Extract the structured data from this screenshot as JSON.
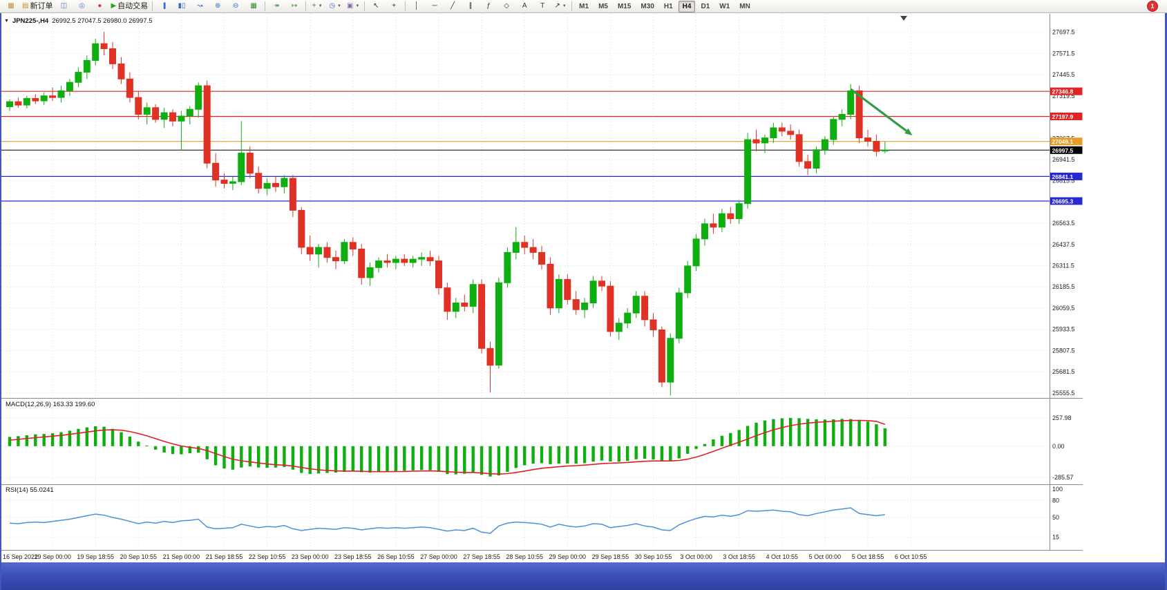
{
  "toolbar": {
    "items": [
      {
        "name": "new-chart",
        "glyph": "▦",
        "color": "#b8962e"
      },
      {
        "name": "new-order",
        "glyph": "▤",
        "color": "#b8962e",
        "label": "新订单"
      },
      {
        "name": "profiles",
        "glyph": "◫",
        "color": "#4a72c8"
      },
      {
        "name": "sounds",
        "glyph": "◎",
        "color": "#4a72c8"
      },
      {
        "name": "expert-advisors",
        "glyph": "●",
        "color": "#d43c3c"
      },
      {
        "name": "autotrading",
        "glyph": "▶",
        "color": "#27a227",
        "label": "自动交易"
      },
      {
        "sep": true
      },
      {
        "name": "bar-chart-mode",
        "glyph": "|||",
        "tight": true,
        "color": "#3a6bd0"
      },
      {
        "name": "candlestick-mode",
        "glyph": "▮▯",
        "color": "#3a6bd0"
      },
      {
        "name": "line-chart-mode",
        "glyph": "↝",
        "color": "#3a6bd0"
      },
      {
        "name": "zoom-in",
        "glyph": "⊕",
        "color": "#3a6bd0"
      },
      {
        "name": "zoom-out",
        "glyph": "⊖",
        "color": "#3a6bd0"
      },
      {
        "name": "tile-windows",
        "glyph": "▦",
        "color": "#2e8b2e"
      },
      {
        "sep": true
      },
      {
        "name": "auto-scroll",
        "glyph": "↠",
        "color": "#2e8b2e"
      },
      {
        "name": "chart-shift",
        "glyph": "↦",
        "color": "#2e8b2e"
      },
      {
        "sep": true
      },
      {
        "name": "indicators",
        "glyph": "+",
        "color": "#2e8b2e",
        "caret": true
      },
      {
        "name": "periods",
        "glyph": "◷",
        "color": "#3a6bd0",
        "caret": true
      },
      {
        "name": "templates",
        "glyph": "▣",
        "color": "#8a6db0",
        "caret": true
      },
      {
        "sep": true
      },
      {
        "name": "cursor",
        "glyph": "↖",
        "color": "#333333"
      },
      {
        "name": "crosshair",
        "glyph": "+",
        "color": "#333333"
      },
      {
        "sep": true
      },
      {
        "name": "vertical-line",
        "glyph": "│",
        "color": "#333333"
      },
      {
        "name": "horizontal-line",
        "glyph": "─",
        "color": "#333333"
      },
      {
        "name": "trendline",
        "glyph": "╱",
        "color": "#333333"
      },
      {
        "name": "channel",
        "glyph": "∥",
        "color": "#333333"
      },
      {
        "name": "fibonacci",
        "glyph": "ƒ",
        "color": "#333333"
      },
      {
        "name": "shapes",
        "glyph": "◇",
        "color": "#333333"
      },
      {
        "name": "text",
        "glyph": "A",
        "color": "#333333"
      },
      {
        "name": "text-label",
        "glyph": "T",
        "color": "#333333"
      },
      {
        "name": "arrows",
        "glyph": "↗",
        "color": "#333333",
        "caret": true
      },
      {
        "sep": true
      }
    ],
    "timeframes": [
      "M1",
      "M5",
      "M15",
      "M30",
      "H1",
      "H4",
      "D1",
      "W1",
      "MN"
    ],
    "active_timeframe": "H4",
    "notification_count": "1"
  },
  "chart_data": {
    "type": "candlestick",
    "symbol": "JPN225-",
    "timeframe": "H4",
    "title": "JPN225-,H4",
    "ohlc_display": "26992.5 27047.5 26980.0 26997.5",
    "last_candle": {
      "open": 26992.5,
      "high": 27047.5,
      "low": 26980.0,
      "close": 26997.5
    },
    "price_axis_labels": [
      "27697.5",
      "27571.5",
      "27445.5",
      "27319.5",
      "27193.5",
      "27067.5",
      "26941.5",
      "26815.5",
      "26689.5",
      "26563.5",
      "26437.5",
      "26311.5",
      "26185.5",
      "26059.5",
      "25933.5",
      "25807.5",
      "25681.5",
      "25555.5"
    ],
    "time_axis_labels": [
      "16 Sep 2022",
      "19 Sep 00:00",
      "19 Sep 18:55",
      "20 Sep 10:55",
      "21 Sep 00:00",
      "21 Sep 18:55",
      "22 Sep 10:55",
      "23 Sep 00:00",
      "23 Sep 18:55",
      "26 Sep 10:55",
      "27 Sep 00:00",
      "27 Sep 18:55",
      "28 Sep 10:55",
      "29 Sep 00:00",
      "29 Sep 18:55",
      "30 Sep 10:55",
      "3 Oct 00:00",
      "3 Oct 18:55",
      "4 Oct 10:55",
      "5 Oct 00:00",
      "5 Oct 18:55",
      "6 Oct 10:55"
    ],
    "bars_per_time_label": 5,
    "candles": [
      [
        27255,
        27300,
        27230,
        27285
      ],
      [
        27285,
        27310,
        27250,
        27265
      ],
      [
        27265,
        27320,
        27245,
        27305
      ],
      [
        27305,
        27330,
        27270,
        27290
      ],
      [
        27290,
        27340,
        27265,
        27320
      ],
      [
        27320,
        27370,
        27290,
        27310
      ],
      [
        27310,
        27380,
        27280,
        27350
      ],
      [
        27350,
        27420,
        27320,
        27400
      ],
      [
        27400,
        27490,
        27370,
        27460
      ],
      [
        27460,
        27560,
        27420,
        27530
      ],
      [
        27530,
        27660,
        27500,
        27630
      ],
      [
        27630,
        27700,
        27560,
        27600
      ],
      [
        27600,
        27640,
        27480,
        27510
      ],
      [
        27510,
        27550,
        27390,
        27420
      ],
      [
        27420,
        27460,
        27280,
        27310
      ],
      [
        27310,
        27350,
        27180,
        27210
      ],
      [
        27210,
        27280,
        27150,
        27250
      ],
      [
        27250,
        27270,
        27160,
        27180
      ],
      [
        27180,
        27250,
        27130,
        27220
      ],
      [
        27220,
        27240,
        27140,
        27170
      ],
      [
        27170,
        27230,
        26995,
        27200
      ],
      [
        27200,
        27260,
        27150,
        27240
      ],
      [
        27240,
        27400,
        27190,
        27380
      ],
      [
        27380,
        27410,
        26890,
        26920
      ],
      [
        26920,
        26980,
        26780,
        26820
      ],
      [
        26820,
        26860,
        26770,
        26800
      ],
      [
        26800,
        26840,
        26760,
        26810
      ],
      [
        26810,
        27170,
        26790,
        26980
      ],
      [
        26980,
        27020,
        26830,
        26860
      ],
      [
        26860,
        26900,
        26740,
        26770
      ],
      [
        26770,
        26830,
        26730,
        26800
      ],
      [
        26800,
        26840,
        26750,
        26780
      ],
      [
        26780,
        26850,
        26740,
        26830
      ],
      [
        26830,
        26850,
        26600,
        26640
      ],
      [
        26640,
        26660,
        26380,
        26420
      ],
      [
        26420,
        26490,
        26340,
        26380
      ],
      [
        26380,
        26440,
        26300,
        26420
      ],
      [
        26420,
        26450,
        26330,
        26360
      ],
      [
        26360,
        26400,
        26290,
        26340
      ],
      [
        26340,
        26470,
        26320,
        26450
      ],
      [
        26450,
        26480,
        26370,
        26410
      ],
      [
        26410,
        26440,
        26200,
        26240
      ],
      [
        26240,
        26330,
        26190,
        26300
      ],
      [
        26300,
        26360,
        26270,
        26340
      ],
      [
        26340,
        26380,
        26300,
        26330
      ],
      [
        26330,
        26370,
        26290,
        26350
      ],
      [
        26350,
        26380,
        26310,
        26330
      ],
      [
        26330,
        26370,
        26300,
        26350
      ],
      [
        26350,
        26390,
        26310,
        26360
      ],
      [
        26360,
        26400,
        26310,
        26340
      ],
      [
        26340,
        26370,
        26140,
        26180
      ],
      [
        26180,
        26210,
        25990,
        26040
      ],
      [
        26040,
        26120,
        26000,
        26090
      ],
      [
        26090,
        26140,
        26040,
        26070
      ],
      [
        26070,
        26230,
        26030,
        26200
      ],
      [
        26200,
        26230,
        25790,
        25820
      ],
      [
        25820,
        25860,
        25560,
        25720
      ],
      [
        25720,
        26240,
        25700,
        26210
      ],
      [
        26210,
        26420,
        26180,
        26390
      ],
      [
        26390,
        26540,
        26350,
        26450
      ],
      [
        26450,
        26490,
        26380,
        26420
      ],
      [
        26420,
        26470,
        26350,
        26390
      ],
      [
        26390,
        26430,
        26290,
        26320
      ],
      [
        26320,
        26360,
        26020,
        26060
      ],
      [
        26060,
        26260,
        26030,
        26230
      ],
      [
        26230,
        26260,
        26080,
        26110
      ],
      [
        26110,
        26160,
        26020,
        26050
      ],
      [
        26050,
        26120,
        26000,
        26090
      ],
      [
        26090,
        26250,
        26060,
        26220
      ],
      [
        26220,
        26250,
        26160,
        26190
      ],
      [
        26190,
        26220,
        25890,
        25920
      ],
      [
        25920,
        26000,
        25870,
        25970
      ],
      [
        25970,
        26060,
        25940,
        26030
      ],
      [
        26030,
        26160,
        26000,
        26130
      ],
      [
        26130,
        26160,
        25950,
        25990
      ],
      [
        25990,
        26030,
        25890,
        25930
      ],
      [
        25930,
        25950,
        25590,
        25620
      ],
      [
        25620,
        25910,
        25540,
        25880
      ],
      [
        25880,
        26180,
        25850,
        26150
      ],
      [
        26150,
        26340,
        26120,
        26310
      ],
      [
        26310,
        26500,
        26280,
        26470
      ],
      [
        26470,
        26590,
        26430,
        26560
      ],
      [
        26560,
        26620,
        26500,
        26540
      ],
      [
        26540,
        26650,
        26510,
        26620
      ],
      [
        26620,
        26660,
        26560,
        26590
      ],
      [
        26590,
        26700,
        26560,
        26680
      ],
      [
        26680,
        27100,
        26650,
        27060
      ],
      [
        27060,
        27120,
        26990,
        27040
      ],
      [
        27040,
        27090,
        26980,
        27070
      ],
      [
        27070,
        27160,
        27040,
        27130
      ],
      [
        27130,
        27160,
        27080,
        27110
      ],
      [
        27110,
        27150,
        27060,
        27090
      ],
      [
        27090,
        27120,
        26900,
        26930
      ],
      [
        26930,
        26970,
        26850,
        26890
      ],
      [
        26890,
        27020,
        26860,
        27000
      ],
      [
        27000,
        27080,
        26970,
        27060
      ],
      [
        27060,
        27200,
        27030,
        27180
      ],
      [
        27180,
        27240,
        27140,
        27210
      ],
      [
        27210,
        27390,
        27180,
        27350
      ],
      [
        27350,
        27380,
        27040,
        27070
      ],
      [
        27070,
        27120,
        27020,
        27050
      ],
      [
        27050,
        27090,
        26960,
        26990
      ],
      [
        26992.5,
        27047.5,
        26980.0,
        26997.5
      ]
    ],
    "hlines": [
      {
        "price": 27346.8,
        "label": "27346.8",
        "color": "#e02424",
        "role": "resistance-line"
      },
      {
        "price": 27197.9,
        "label": "27197.9",
        "color": "#e02424",
        "role": "resistance-line"
      },
      {
        "price": 27049.1,
        "label": "27049.1",
        "color": "#e89c28",
        "role": "pivot-line"
      },
      {
        "price": 26997.5,
        "label": "26997.5",
        "color": "#000000",
        "role": "bid-price-line"
      },
      {
        "price": 26841.1,
        "label": "26841.1",
        "color": "#2828d0",
        "role": "support-line"
      },
      {
        "price": 26695.3,
        "label": "26695.3",
        "color": "#2828d0",
        "role": "support-line"
      }
    ],
    "trend_arrow": {
      "from_bar": 98,
      "from_price": 27360,
      "to_bar": 105.2,
      "to_price": 27085,
      "color": "#2f9e44"
    },
    "indicators": {
      "macd": {
        "label": "MACD(12,26,9) 163.33 199.60",
        "values_display": {
          "macd": 163.33,
          "signal": 199.6
        },
        "axis_labels": [
          "257.98",
          "0.00",
          "-285.57"
        ],
        "histogram_color": "#0fae10",
        "signal_color": "#e02020",
        "histogram": [
          85,
          92,
          100,
          108,
          112,
          118,
          128,
          142,
          158,
          172,
          182,
          178,
          158,
          128,
          88,
          42,
          5,
          -32,
          -58,
          -72,
          -75,
          -65,
          -60,
          -120,
          -175,
          -205,
          -215,
          -195,
          -185,
          -195,
          -198,
          -196,
          -190,
          -215,
          -245,
          -255,
          -250,
          -245,
          -242,
          -235,
          -230,
          -238,
          -242,
          -238,
          -232,
          -228,
          -225,
          -222,
          -218,
          -220,
          -235,
          -255,
          -258,
          -252,
          -242,
          -262,
          -278,
          -268,
          -235,
          -200,
          -175,
          -160,
          -155,
          -165,
          -160,
          -158,
          -160,
          -155,
          -142,
          -132,
          -140,
          -142,
          -135,
          -120,
          -115,
          -122,
          -135,
          -138,
          -112,
          -70,
          -25,
          20,
          62,
          95,
          120,
          148,
          185,
          215,
          235,
          248,
          255,
          258,
          256,
          250,
          246,
          244,
          246,
          250,
          248,
          240,
          225,
          200,
          163.33
        ],
        "signal": [
          55,
          62,
          70,
          78,
          85,
          92,
          99,
          108,
          118,
          129,
          140,
          148,
          150,
          146,
          134,
          116,
          94,
          69,
          44,
          21,
          2,
          -11,
          -21,
          -41,
          -68,
          -95,
          -119,
          -134,
          -144,
          -154,
          -163,
          -170,
          -174,
          -182,
          -195,
          -207,
          -216,
          -222,
          -226,
          -228,
          -228,
          -230,
          -232,
          -233,
          -233,
          -232,
          -231,
          -229,
          -227,
          -226,
          -228,
          -233,
          -238,
          -241,
          -241,
          -245,
          -252,
          -255,
          -251,
          -241,
          -228,
          -214,
          -202,
          -195,
          -188,
          -182,
          -178,
          -173,
          -167,
          -160,
          -156,
          -153,
          -149,
          -143,
          -138,
          -135,
          -135,
          -135,
          -131,
          -119,
          -100,
          -76,
          -48,
          -19,
          9,
          37,
          66,
          96,
          124,
          149,
          170,
          188,
          201,
          211,
          218,
          223,
          228,
          232,
          235,
          236,
          234,
          227,
          199.6
        ]
      },
      "rsi": {
        "label": "RSI(14) 55.0241",
        "value_display": 55.0241,
        "axis_labels": [
          "100",
          "80",
          "50",
          "15"
        ],
        "levels": [
          80,
          50,
          15
        ],
        "line_color": "#4a90d9",
        "values": [
          40,
          39,
          41,
          42,
          41,
          43,
          45,
          47,
          50,
          53,
          56,
          54,
          50,
          47,
          43,
          39,
          42,
          40,
          43,
          41,
          44,
          45,
          47,
          33,
          30,
          31,
          32,
          38,
          35,
          32,
          34,
          33,
          36,
          30,
          27,
          29,
          31,
          30,
          29,
          32,
          31,
          28,
          30,
          32,
          31,
          32,
          31,
          32,
          33,
          32,
          29,
          26,
          28,
          27,
          31,
          24,
          22,
          35,
          40,
          42,
          41,
          40,
          38,
          33,
          38,
          35,
          33,
          35,
          39,
          38,
          32,
          34,
          36,
          39,
          35,
          33,
          28,
          27,
          37,
          43,
          48,
          52,
          51,
          54,
          52,
          55,
          62,
          61,
          62,
          63,
          61,
          60,
          55,
          53,
          57,
          60,
          63,
          65,
          67,
          57,
          55,
          53,
          55.02
        ]
      }
    },
    "colors": {
      "bull": "#0fae10",
      "bear": "#e03125",
      "background": "#ffffff",
      "grid": "#dadada",
      "separator": "#8a8a8a",
      "window_frame": "#4157be"
    }
  }
}
